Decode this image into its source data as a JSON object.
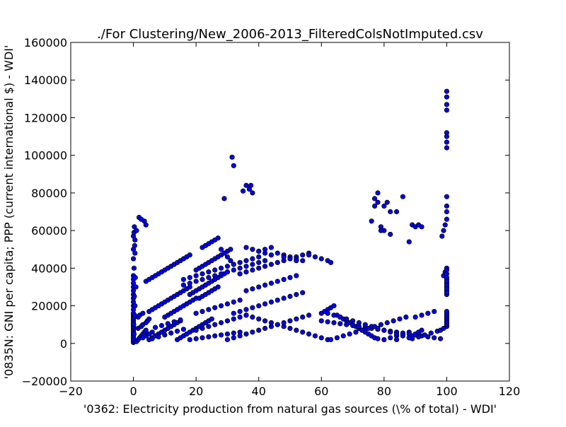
{
  "chart_data": {
    "type": "scatter",
    "title": "./For Clustering/New_2006-2013_FilteredColsNotImputed.csv",
    "xlabel": "'0362: Electricity production from natural gas sources  (\\% of total) - WDI'",
    "ylabel": "'0835N: GNI per capita; PPP  (current international $) - WDI'",
    "xlim": [
      -20,
      120
    ],
    "ylim": [
      -20000,
      160000
    ],
    "x_ticks": [
      "−20",
      "0",
      "20",
      "40",
      "60",
      "80",
      "100",
      "120"
    ],
    "y_ticks": [
      "−20000",
      "0",
      "20000",
      "40000",
      "60000",
      "80000",
      "100000",
      "120000",
      "140000",
      "160000"
    ],
    "grid": false,
    "legend": "none",
    "marker_color": "#0000ff",
    "marker_edge": "#000000",
    "series": [
      {
        "x": [
          0,
          0,
          0,
          0,
          0,
          0,
          0,
          0,
          0,
          0,
          0,
          0,
          0,
          0,
          0,
          0,
          0,
          0,
          0,
          0,
          0,
          0,
          0,
          0,
          0,
          0,
          0,
          0,
          0,
          0,
          0.2,
          0.3,
          0.4,
          0.5,
          0.2,
          0.6,
          0.8,
          0.3,
          0.5,
          0.4,
          0.1,
          0.2,
          1,
          1.5,
          2,
          2.5,
          3,
          3.5,
          4,
          1.5,
          2.5,
          3,
          4,
          4.5,
          5,
          1.5,
          2,
          3,
          1.8,
          2.5,
          3.5,
          4,
          1,
          0.5,
          5,
          6,
          7,
          8,
          9,
          10,
          11,
          12,
          13,
          14,
          15,
          6,
          8,
          10,
          12,
          14,
          16,
          7,
          9,
          11,
          13,
          15,
          5,
          6,
          7,
          8,
          9,
          10,
          11,
          12,
          13,
          14,
          15,
          16,
          17,
          18,
          4,
          5,
          6,
          7,
          8,
          9,
          10,
          11,
          12,
          13,
          14,
          15,
          16,
          17,
          18,
          10,
          11,
          12,
          13,
          14,
          15,
          16,
          17,
          18,
          19,
          20,
          14,
          15,
          16,
          17,
          18,
          19,
          20,
          21,
          22,
          23,
          24,
          25,
          18,
          19,
          20,
          21,
          22,
          23,
          24,
          25,
          26,
          27,
          28,
          29,
          30,
          20,
          21,
          22,
          23,
          24,
          25,
          26,
          27,
          28,
          29,
          30,
          31,
          22,
          23,
          24,
          25,
          26,
          27,
          28,
          29,
          30,
          31,
          32,
          18,
          20,
          22,
          24,
          26,
          28,
          30,
          32,
          34,
          20,
          22,
          24,
          26,
          28,
          30,
          32,
          34,
          36,
          20,
          22,
          24,
          26,
          28,
          30,
          32,
          34,
          21,
          22,
          23,
          24,
          25,
          26,
          27,
          16,
          18,
          20,
          22,
          24,
          26,
          28,
          30,
          32,
          34,
          36,
          38,
          40,
          16,
          18,
          20,
          22,
          24,
          26,
          28,
          30,
          32,
          34,
          36,
          38,
          40,
          42,
          30,
          32,
          34,
          36,
          38,
          40,
          42,
          44,
          46,
          48,
          50,
          52,
          54,
          56,
          32,
          34,
          36,
          38,
          40,
          42,
          44,
          46,
          48,
          50,
          52,
          54,
          36,
          38,
          40,
          42,
          44,
          46,
          48,
          50,
          52,
          34,
          36,
          38,
          40,
          42,
          44,
          46,
          48,
          50,
          52,
          54,
          56,
          36,
          38,
          40,
          42,
          44,
          46,
          48,
          50,
          52,
          54,
          56,
          58,
          60,
          62,
          40,
          42,
          44,
          46,
          48,
          50,
          52,
          54,
          56,
          58,
          60,
          62,
          63,
          60,
          61,
          62,
          63,
          64,
          65,
          66,
          67,
          68,
          69,
          70,
          71,
          72,
          73,
          74,
          75,
          76,
          77,
          78,
          80,
          82,
          84,
          86,
          88,
          60,
          62,
          64,
          66,
          68,
          70,
          72,
          74,
          76,
          78,
          80,
          82,
          84,
          86,
          88,
          90,
          92,
          94,
          96,
          98,
          62,
          64,
          66,
          68,
          70,
          72,
          74,
          76,
          78,
          80,
          82,
          84,
          86,
          88,
          90,
          92,
          94,
          96,
          63,
          65,
          67,
          69,
          71,
          73,
          75,
          77,
          79,
          81,
          83,
          85,
          87,
          89,
          91,
          93,
          95,
          97,
          76,
          77,
          78,
          79,
          80,
          82,
          84,
          86,
          88,
          89,
          90,
          91,
          92,
          98,
          99,
          100,
          100,
          100,
          100,
          100,
          100,
          100,
          100,
          100,
          100,
          100,
          100,
          100,
          100,
          99,
          99.5,
          100,
          100,
          100,
          100,
          100,
          100,
          100,
          100,
          98.5,
          99,
          99.5,
          100,
          100,
          100,
          100,
          100,
          100,
          100,
          100,
          100,
          100,
          100,
          100,
          31.5,
          32,
          29,
          35,
          36,
          37,
          38,
          37.5,
          84,
          88,
          89,
          90,
          91,
          92,
          78,
          77,
          79,
          80,
          81,
          82,
          3,
          4,
          5,
          6,
          36,
          38,
          40,
          42,
          44,
          48,
          50,
          52
        ],
        "y": [
          500,
          1000,
          2000,
          3000,
          4000,
          5000,
          6000,
          7000,
          8000,
          9000,
          10000,
          11000,
          12000,
          13000,
          14000,
          15000,
          16000,
          18000,
          20000,
          22000,
          24000,
          26000,
          28000,
          30000,
          32000,
          34000,
          36000,
          45000,
          50000,
          57000,
          59000,
          62000,
          52000,
          48000,
          40000,
          35000,
          30000,
          25000,
          20000,
          15000,
          10000,
          5000,
          1000,
          2000,
          3000,
          4000,
          5000,
          6000,
          7000,
          8000,
          9000,
          10000,
          11000,
          12000,
          13000,
          14000,
          15000,
          16000,
          67000,
          66000,
          65000,
          63000,
          60000,
          55000,
          2000,
          3000,
          4000,
          5000,
          6000,
          7000,
          8000,
          9000,
          10000,
          11000,
          12000,
          2500,
          3500,
          4500,
          5500,
          6500,
          7500,
          8500,
          9500,
          10500,
          11500,
          12500,
          17000,
          18000,
          19000,
          20000,
          21000,
          22000,
          23000,
          24000,
          25000,
          26000,
          27000,
          28000,
          29000,
          30000,
          33000,
          34000,
          35000,
          36000,
          37000,
          38000,
          39000,
          40000,
          41000,
          42000,
          43000,
          44000,
          45000,
          46000,
          47000,
          14000,
          15000,
          16000,
          17000,
          18000,
          19000,
          20000,
          21000,
          22000,
          23000,
          24000,
          2000,
          3000,
          4000,
          5000,
          6000,
          7000,
          8000,
          9000,
          10000,
          11000,
          12000,
          13000,
          26000,
          27000,
          28000,
          29000,
          30000,
          31000,
          32000,
          33000,
          34000,
          35000,
          36000,
          37000,
          38000,
          39000,
          40000,
          41000,
          42000,
          43000,
          44000,
          45000,
          46000,
          47000,
          48000,
          49000,
          50000,
          51000,
          52000,
          53000,
          54000,
          55000,
          56000,
          50000,
          48000,
          46000,
          44000,
          42000,
          2000,
          2500,
          3000,
          3500,
          4000,
          4500,
          5000,
          5500,
          6000,
          7000,
          8000,
          9000,
          10000,
          11000,
          12000,
          13000,
          14000,
          15000,
          16000,
          17000,
          18000,
          19000,
          20000,
          21000,
          22000,
          23000,
          24000,
          25000,
          26000,
          27000,
          28000,
          29000,
          30000,
          34000,
          35000,
          36000,
          37000,
          38000,
          39000,
          40000,
          41000,
          42000,
          43000,
          44000,
          45000,
          46000,
          31000,
          32000,
          33000,
          34000,
          35000,
          36000,
          37000,
          38000,
          39000,
          40000,
          41000,
          42000,
          43000,
          44000,
          2000,
          3000,
          4000,
          5000,
          6000,
          7000,
          8000,
          9000,
          10000,
          11000,
          12000,
          13000,
          14000,
          15000,
          16000,
          17000,
          18000,
          19000,
          20000,
          21000,
          22000,
          23000,
          24000,
          25000,
          26000,
          27000,
          28000,
          29000,
          30000,
          31000,
          32000,
          33000,
          34000,
          35000,
          36000,
          37000,
          38000,
          39000,
          40000,
          41000,
          42000,
          43000,
          44000,
          45000,
          46000,
          47000,
          48000,
          15000,
          14000,
          13000,
          12000,
          11000,
          10000,
          9000,
          8000,
          7000,
          6000,
          5000,
          4000,
          3000,
          2000,
          49000,
          50000,
          51000,
          48000,
          47000,
          46000,
          45000,
          44000,
          47000,
          46000,
          45000,
          44000,
          43000,
          16000,
          17000,
          18000,
          19000,
          20000,
          15000,
          14000,
          13000,
          12000,
          11000,
          10000,
          9000,
          8000,
          7000,
          6000,
          5000,
          4000,
          3000,
          2500,
          2000,
          3000,
          4000,
          5000,
          6000,
          12000,
          11500,
          11000,
          10500,
          10000,
          9500,
          9000,
          8500,
          8000,
          7500,
          7000,
          6500,
          6000,
          5500,
          5000,
          4500,
          4000,
          3500,
          3000,
          2500,
          16000,
          15000,
          14000,
          13000,
          12000,
          11000,
          10000,
          9000,
          8000,
          7000,
          6000,
          5000,
          4000,
          3000,
          14000,
          15000,
          16000,
          17000,
          2000,
          3000,
          4000,
          5000,
          6000,
          7000,
          8000,
          9000,
          10000,
          11000,
          12000,
          13000,
          14000,
          2500,
          3500,
          4500,
          5500,
          6500,
          65000,
          73000,
          75000,
          62000,
          60000,
          58000,
          70000,
          78000,
          54000,
          63000,
          62000,
          63000,
          62000,
          7000,
          8000,
          9000,
          10000,
          11000,
          12000,
          13000,
          14000,
          15000,
          16000,
          17000,
          26000,
          28000,
          30000,
          32000,
          34000,
          36000,
          38000,
          37000,
          35000,
          33000,
          31000,
          29000,
          27000,
          40000,
          39000,
          57000,
          60000,
          63000,
          66000,
          70000,
          104000,
          107000,
          110000,
          112000,
          124000,
          127000,
          131000,
          134000,
          78000,
          73000,
          99000,
          94500,
          77000,
          81000,
          84000,
          82000,
          80000,
          84000,
          2000,
          3000,
          4000,
          5000,
          6000,
          7000,
          80000,
          77000,
          60000,
          73000,
          75000,
          70000,
          3000,
          4000,
          5000,
          6000,
          51000,
          50000,
          49000,
          48000,
          47000,
          46000,
          45000,
          44000
        ]
      }
    ]
  }
}
